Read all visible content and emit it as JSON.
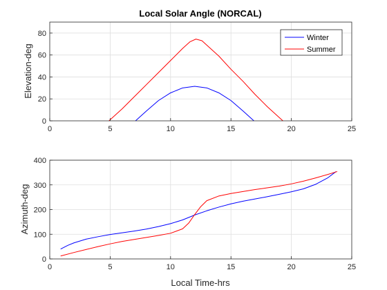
{
  "chart_data": [
    {
      "type": "line",
      "title": "Local Solar Angle (NORCAL)",
      "xlabel": "",
      "ylabel": "Elevation-deg",
      "xlim": [
        0,
        25
      ],
      "ylim": [
        0,
        90
      ],
      "xticks": [
        0,
        5,
        10,
        15,
        20,
        25
      ],
      "yticks": [
        0,
        20,
        40,
        60,
        80
      ],
      "grid": true,
      "legend": "top-right",
      "series": [
        {
          "name": "Winter",
          "color": "#0000ff",
          "x": [
            7.1,
            8,
            9,
            10,
            11,
            12,
            13,
            14,
            15,
            16,
            16.9
          ],
          "y": [
            0,
            9,
            18.5,
            25.5,
            30,
            31.5,
            30,
            25.5,
            18.5,
            9,
            0
          ]
        },
        {
          "name": "Summer",
          "color": "#ff0000",
          "x": [
            4.9,
            6,
            7,
            8,
            9,
            10,
            11,
            11.6,
            12.1,
            12.6,
            13,
            14,
            15,
            16,
            17,
            18,
            19.3
          ],
          "y": [
            0,
            11,
            22,
            33,
            44,
            55,
            66,
            72,
            74.5,
            73,
            69,
            59,
            47,
            36,
            24,
            13,
            0
          ]
        }
      ]
    },
    {
      "type": "line",
      "title": "",
      "xlabel": "Local Time-hrs",
      "ylabel": "Azimuth-deg",
      "xlim": [
        0,
        25
      ],
      "ylim": [
        0,
        400
      ],
      "xticks": [
        0,
        5,
        10,
        15,
        20,
        25
      ],
      "yticks": [
        0,
        100,
        200,
        300,
        400
      ],
      "grid": true,
      "series": [
        {
          "name": "Winter",
          "color": "#0000ff",
          "x": [
            0.9,
            1.5,
            2,
            3,
            4,
            5,
            6,
            7,
            8,
            9,
            10,
            11,
            12,
            13,
            14,
            15,
            16,
            17,
            18,
            19,
            20,
            21,
            22,
            23,
            23.7
          ],
          "y": [
            40,
            55,
            65,
            80,
            90,
            99,
            106,
            113,
            121,
            131,
            143,
            158,
            178,
            195,
            210,
            223,
            234,
            243,
            252,
            262,
            272,
            284,
            302,
            328,
            354
          ]
        },
        {
          "name": "Summer",
          "color": "#ff0000",
          "x": [
            0.9,
            2,
            3,
            4,
            5,
            6,
            7,
            8,
            9,
            10,
            11,
            11.5,
            12,
            12.5,
            13,
            14,
            15,
            16,
            17,
            18,
            19,
            20,
            21,
            22,
            23,
            23.8
          ],
          "y": [
            12,
            26,
            38,
            50,
            61,
            71,
            79,
            87,
            95,
            104,
            122,
            145,
            180,
            212,
            236,
            255,
            265,
            273,
            281,
            288,
            295,
            304,
            315,
            328,
            342,
            354
          ]
        }
      ]
    }
  ]
}
